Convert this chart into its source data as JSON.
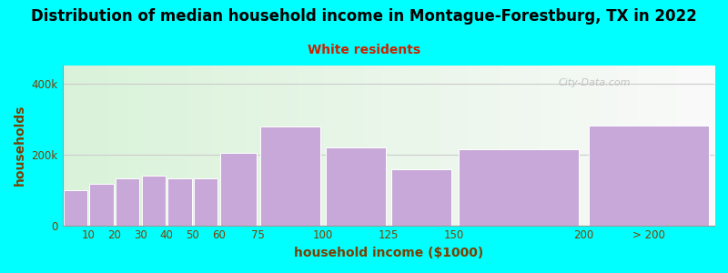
{
  "title": "Distribution of median household income in Montague-Forestburg, TX in 2022",
  "subtitle": "White residents",
  "xlabel": "household income ($1000)",
  "ylabel": "households",
  "bg_color": "#00FFFF",
  "bar_color": "#C8A8D8",
  "bar_edge_color": "#FFFFFF",
  "categories": [
    "10",
    "20",
    "30",
    "40",
    "50",
    "60",
    "75",
    "100",
    "125",
    "150",
    "200",
    "> 200"
  ],
  "bar_lefts": [
    0,
    10,
    20,
    30,
    40,
    50,
    60,
    75,
    100,
    125,
    150,
    200
  ],
  "bar_widths": [
    10,
    10,
    10,
    10,
    10,
    10,
    15,
    25,
    25,
    25,
    50,
    50
  ],
  "values": [
    100000,
    118000,
    132000,
    140000,
    133000,
    133000,
    205000,
    278000,
    220000,
    158000,
    213000,
    282000
  ],
  "yticks": [
    0,
    200000,
    400000
  ],
  "ytick_labels": [
    "0",
    "200k",
    "400k"
  ],
  "ylim": [
    0,
    450000
  ],
  "xlim": [
    0,
    250
  ],
  "xtick_positions": [
    10,
    20,
    30,
    40,
    50,
    60,
    75,
    100,
    125,
    150,
    200,
    225
  ],
  "xtick_labels": [
    "10",
    "20",
    "30",
    "40",
    "50",
    "60",
    "75",
    "100",
    "125",
    "150",
    "200",
    "> 200"
  ],
  "title_fontsize": 12,
  "subtitle_fontsize": 10,
  "axis_label_fontsize": 10,
  "tick_fontsize": 8.5,
  "title_color": "#000000",
  "subtitle_color": "#CC2200",
  "label_color": "#7B3F00",
  "watermark": "City-Data.com",
  "grid_color": "#CCCCCC",
  "grad_left_color": "#CCEECC",
  "grad_right_color": "#F8F8F8"
}
